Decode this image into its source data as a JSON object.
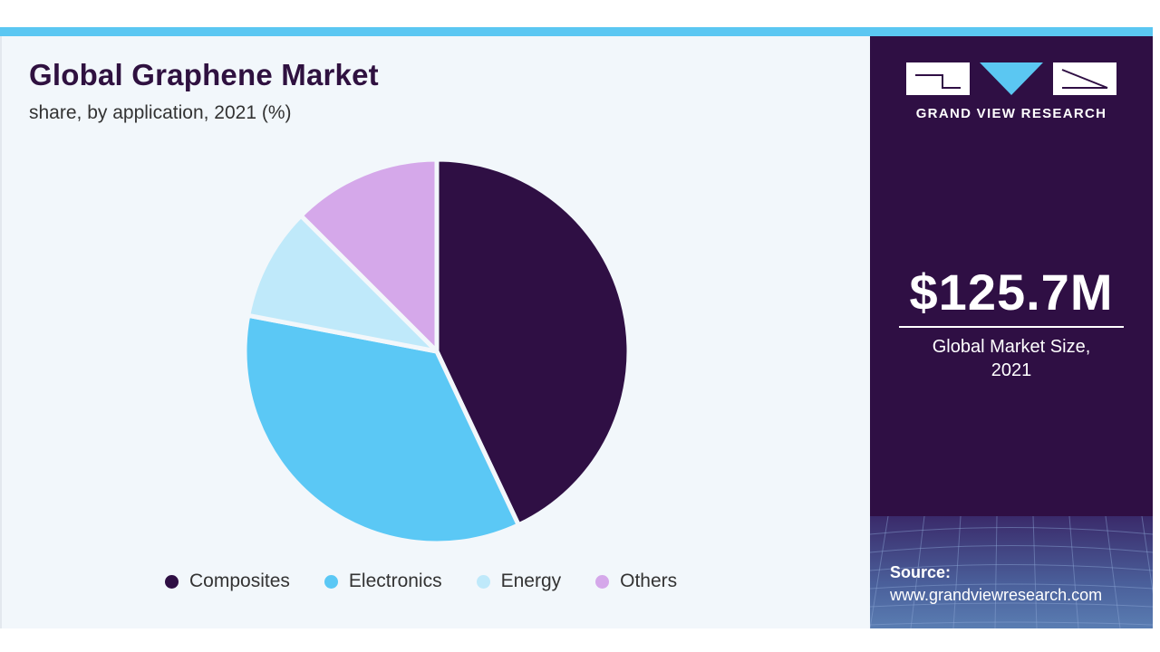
{
  "header": {
    "title": "Global Graphene Market",
    "subtitle": "share, by application, 2021 (%)"
  },
  "chart_data": {
    "type": "pie",
    "title": "Global Graphene Market",
    "subtitle": "share, by application, 2021 (%)",
    "categories": [
      "Composites",
      "Electronics",
      "Energy",
      "Others"
    ],
    "values": [
      43,
      35,
      9.5,
      12.5
    ],
    "colors": [
      "#2f0f44",
      "#5bc8f5",
      "#bfe9fa",
      "#d5a8ea"
    ],
    "legend_position": "bottom"
  },
  "legend": {
    "items": [
      {
        "label": "Composites",
        "color": "#2f0f44"
      },
      {
        "label": "Electronics",
        "color": "#5bc8f5"
      },
      {
        "label": "Energy",
        "color": "#bfe9fa"
      },
      {
        "label": "Others",
        "color": "#d5a8ea"
      }
    ]
  },
  "side": {
    "brand": "GRAND VIEW RESEARCH",
    "market_size": "$125.7M",
    "market_label_line1": "Global Market Size,",
    "market_label_line2": "2021",
    "source_label": "Source:",
    "source_url": "www.grandviewresearch.com"
  },
  "colors": {
    "accent": "#5bc7f2",
    "panel": "#2f0f44",
    "background": "#f2f7fb"
  },
  "icons": {
    "logo": "grand-view-research-logo-icon"
  }
}
